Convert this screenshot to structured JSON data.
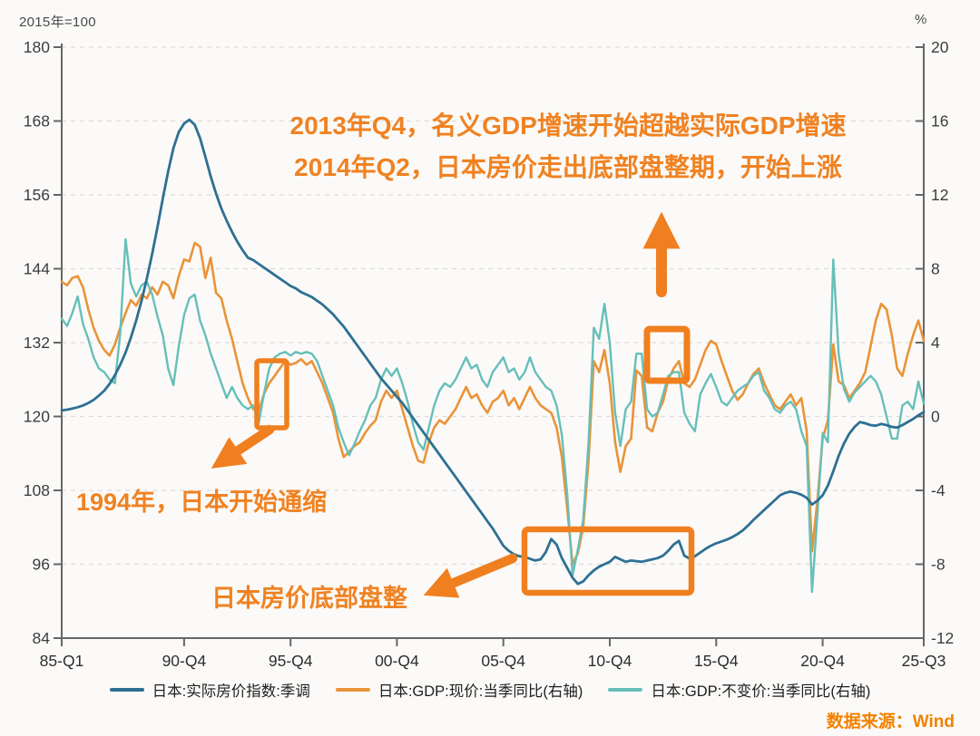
{
  "axis_units": {
    "left": "2015年=100",
    "right": "%"
  },
  "annotations": {
    "top_line1": "2013年Q4，名义GDP增速开始超越实际GDP增速",
    "top_line2": "2014年Q2，日本房价走出底部盘整期，开始上涨",
    "deflation_note": "1994年，日本开始通缩",
    "bottom_note": "日本房价底部盘整",
    "highlight_color": "#f07f1f"
  },
  "source": {
    "text": "数据来源：Wind"
  },
  "chart_data": {
    "type": "line",
    "title": "",
    "x_start": "1985-Q1",
    "x_end": "2025-Q3",
    "frequency": "quarterly",
    "grid": "horizontal-dashed",
    "legend_position": "bottom",
    "x_tick_labels": [
      "85-Q1",
      "90-Q4",
      "95-Q4",
      "00-Q4",
      "05-Q4",
      "10-Q4",
      "15-Q4",
      "20-Q4",
      "25-Q3"
    ],
    "x_tick_quarters": [
      0,
      23,
      43,
      63,
      83,
      103,
      123,
      143,
      162
    ],
    "left_axis": {
      "min": 84,
      "max": 180,
      "ticks": [
        180,
        168,
        156,
        144,
        132,
        120,
        108,
        96,
        84
      ]
    },
    "right_axis": {
      "min": -12,
      "max": 20,
      "ticks": [
        20,
        16,
        12,
        8,
        4,
        0,
        -4,
        -8,
        -12
      ]
    },
    "series": [
      {
        "name": "日本:实际房价指数:季调",
        "axis": "left",
        "color": "#2e7093",
        "values": [
          121.0,
          121.1,
          121.3,
          121.5,
          121.8,
          122.2,
          122.7,
          123.4,
          124.2,
          125.3,
          126.7,
          128.4,
          130.4,
          132.8,
          135.6,
          138.8,
          142.4,
          146.4,
          150.8,
          155.4,
          159.8,
          163.6,
          166.2,
          167.6,
          168.2,
          167.4,
          165.2,
          162.2,
          159.0,
          156.2,
          153.8,
          151.8,
          150.0,
          148.4,
          147.0,
          145.8,
          145.4,
          144.8,
          144.2,
          143.6,
          143.0,
          142.4,
          141.8,
          141.2,
          140.8,
          140.2,
          139.8,
          139.4,
          138.8,
          138.2,
          137.4,
          136.6,
          135.6,
          134.6,
          133.4,
          132.2,
          131.0,
          129.8,
          128.6,
          127.4,
          126.2,
          125.2,
          124.2,
          123.2,
          122.2,
          121.0,
          119.8,
          118.6,
          117.4,
          116.2,
          115.0,
          113.8,
          112.6,
          111.4,
          110.2,
          109.0,
          107.8,
          106.6,
          105.4,
          104.2,
          103.0,
          101.8,
          100.4,
          99.0,
          98.2,
          97.6,
          97.3,
          97.2,
          96.9,
          96.6,
          96.8,
          98.0,
          100.1,
          99.2,
          97.0,
          95.4,
          93.8,
          92.8,
          93.2,
          94.2,
          95.0,
          95.6,
          96.0,
          96.4,
          97.2,
          96.8,
          96.4,
          96.6,
          96.5,
          96.4,
          96.6,
          96.8,
          97.0,
          97.4,
          98.2,
          99.2,
          99.8,
          97.4,
          96.9,
          97.3,
          97.9,
          98.5,
          99.0,
          99.4,
          99.7,
          100.0,
          100.4,
          100.9,
          101.5,
          102.3,
          103.2,
          104.0,
          104.8,
          105.6,
          106.4,
          107.2,
          107.6,
          107.8,
          107.6,
          107.3,
          106.8,
          105.7,
          106.3,
          107.2,
          108.8,
          111.1,
          113.6,
          115.6,
          117.2,
          118.3,
          119.1,
          118.9,
          118.6,
          118.5,
          118.8,
          118.6,
          118.3,
          118.2,
          118.6,
          119.1,
          119.6,
          120.2,
          120.7
        ]
      },
      {
        "name": "日本:GDP:现价:当季同比(右轴)",
        "axis": "right",
        "color": "#ea9338",
        "values": [
          7.3,
          7.1,
          7.5,
          7.6,
          7.0,
          5.8,
          4.8,
          4.1,
          3.6,
          3.3,
          3.9,
          4.8,
          5.6,
          6.3,
          6.0,
          6.6,
          6.4,
          7.0,
          6.6,
          7.3,
          7.1,
          6.4,
          7.6,
          8.5,
          8.4,
          9.4,
          9.2,
          7.5,
          8.6,
          6.7,
          6.4,
          5.2,
          4.2,
          3.0,
          1.8,
          1.0,
          0.4,
          0.3,
          1.2,
          1.8,
          2.2,
          2.6,
          3.0,
          2.8,
          2.9,
          3.1,
          2.8,
          3.0,
          2.4,
          1.8,
          1.0,
          0.2,
          -1.2,
          -2.2,
          -1.9,
          -1.6,
          -1.4,
          -0.9,
          -0.5,
          -0.2,
          0.8,
          1.4,
          1.0,
          1.4,
          0.4,
          -0.6,
          -1.6,
          -2.4,
          -2.5,
          -1.4,
          -0.6,
          -0.2,
          -0.4,
          0.0,
          0.4,
          1.0,
          1.6,
          1.0,
          1.2,
          0.6,
          0.2,
          0.8,
          1.0,
          1.4,
          0.6,
          1.0,
          0.4,
          1.0,
          1.6,
          1.0,
          0.6,
          0.4,
          0.2,
          -0.6,
          -2.2,
          -5.0,
          -8.0,
          -7.4,
          -6.0,
          -2.4,
          3.0,
          2.4,
          3.6,
          1.8,
          -1.4,
          -3.0,
          -1.6,
          -1.2,
          2.5,
          2.2,
          -0.6,
          -0.8,
          0.2,
          0.8,
          2.0,
          2.6,
          3.0,
          1.8,
          1.6,
          2.0,
          2.8,
          3.6,
          4.1,
          3.9,
          3.0,
          2.2,
          1.4,
          0.9,
          1.2,
          1.8,
          2.3,
          2.6,
          1.8,
          1.2,
          0.6,
          0.4,
          0.8,
          1.2,
          0.6,
          1.0,
          -0.8,
          -7.3,
          -4.6,
          -1.2,
          -0.2,
          3.9,
          1.9,
          1.7,
          1.0,
          1.4,
          1.8,
          2.4,
          3.8,
          5.2,
          6.1,
          5.8,
          4.4,
          2.6,
          2.2,
          3.4,
          4.4,
          5.2,
          4.1
        ]
      },
      {
        "name": "日本:GDP:不变价:当季同比(右轴)",
        "axis": "right",
        "color": "#66bfba",
        "values": [
          5.3,
          4.9,
          5.6,
          6.5,
          5.0,
          4.2,
          3.2,
          2.6,
          2.4,
          2.0,
          1.8,
          4.5,
          9.6,
          7.2,
          6.5,
          7.1,
          7.3,
          6.6,
          5.4,
          4.4,
          2.6,
          1.7,
          3.8,
          5.5,
          6.4,
          6.6,
          5.2,
          4.4,
          3.4,
          2.6,
          1.8,
          1.0,
          1.6,
          1.0,
          0.6,
          0.4,
          0.6,
          -0.4,
          1.2,
          2.6,
          3.2,
          3.4,
          3.5,
          3.3,
          3.5,
          3.4,
          3.5,
          3.4,
          3.0,
          2.2,
          1.4,
          0.6,
          -0.6,
          -1.4,
          -2.1,
          -1.5,
          -0.8,
          -0.2,
          0.6,
          1.0,
          2.0,
          2.6,
          2.2,
          2.6,
          1.8,
          0.8,
          -0.4,
          -1.4,
          -1.8,
          -0.6,
          0.6,
          1.4,
          1.8,
          1.6,
          2.0,
          2.6,
          3.2,
          2.6,
          2.8,
          2.0,
          1.6,
          2.4,
          2.8,
          3.2,
          2.4,
          2.6,
          2.0,
          2.4,
          3.2,
          2.4,
          2.0,
          1.6,
          1.4,
          0.6,
          -1.0,
          -4.2,
          -8.6,
          -7.2,
          -5.6,
          -1.4,
          4.8,
          4.2,
          6.1,
          4.0,
          0.2,
          -1.6,
          0.4,
          0.8,
          3.4,
          3.4,
          0.4,
          0.0,
          0.2,
          1.2,
          2.2,
          2.4,
          2.4,
          0.2,
          -0.4,
          -0.8,
          1.2,
          1.8,
          2.3,
          1.6,
          0.8,
          0.6,
          1.0,
          1.4,
          1.6,
          1.8,
          2.2,
          2.4,
          1.4,
          1.0,
          0.4,
          0.2,
          0.6,
          0.8,
          0.4,
          -0.8,
          -1.6,
          -9.5,
          -5.4,
          -0.9,
          -1.4,
          8.5,
          3.4,
          1.5,
          0.8,
          1.3,
          1.6,
          1.9,
          2.2,
          1.9,
          1.2,
          0.0,
          -1.2,
          -1.2,
          0.6,
          0.8,
          0.4,
          1.9,
          0.7
        ]
      }
    ]
  }
}
